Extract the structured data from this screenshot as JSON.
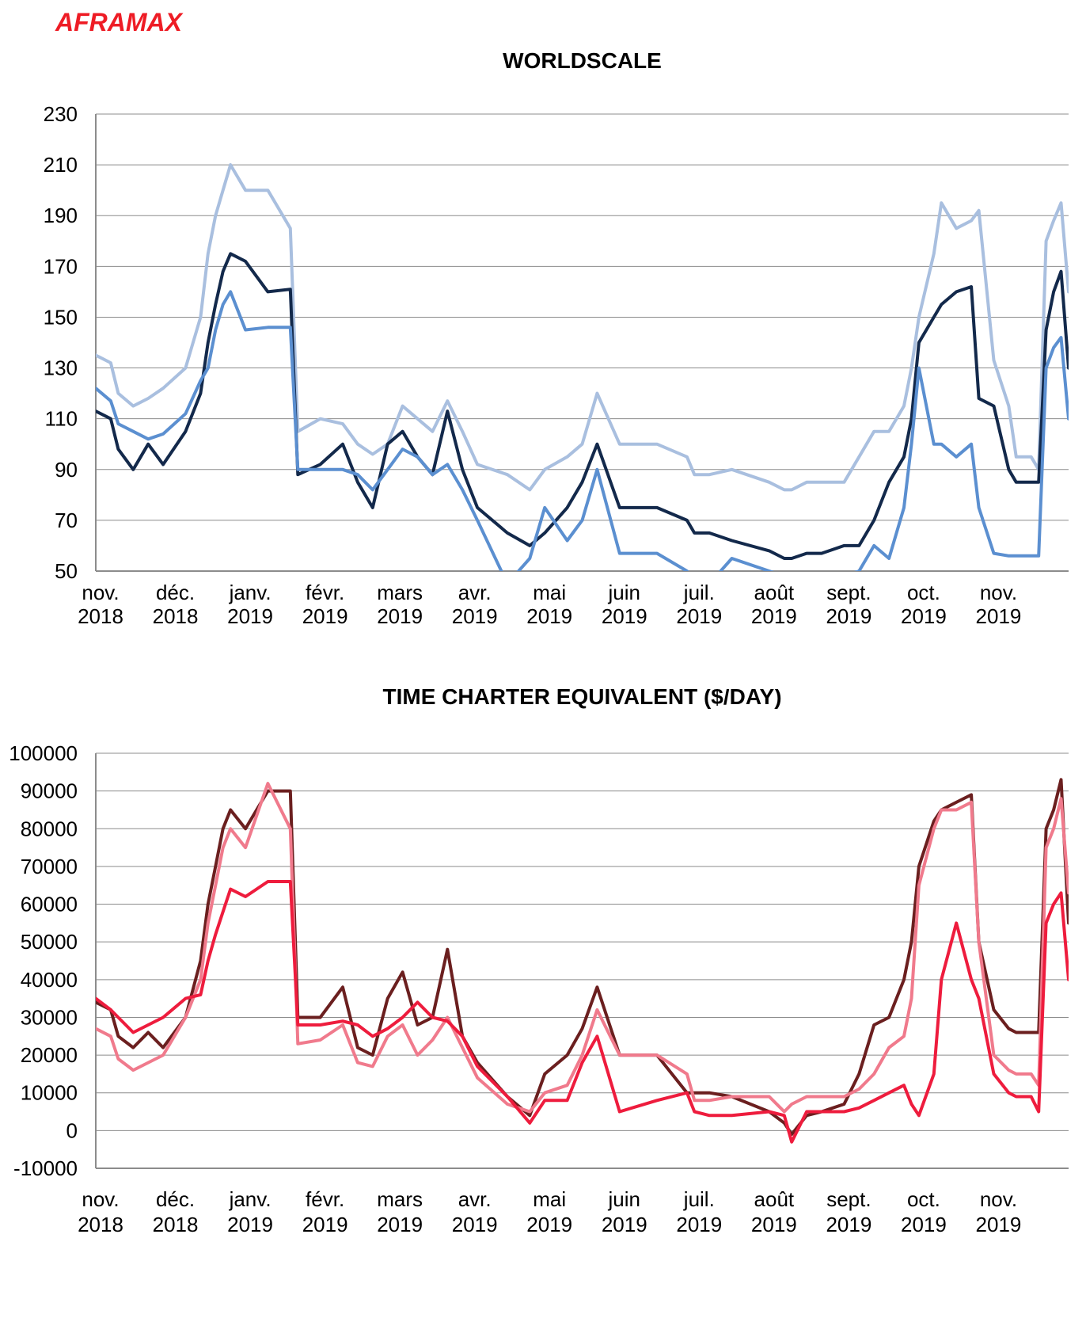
{
  "brand": "AFRAMAX",
  "chart_data": [
    {
      "type": "line",
      "title": "WORLDSCALE",
      "xlabel": "",
      "ylabel": "",
      "ylim": [
        50,
        230
      ],
      "yticks": [
        "230",
        "210",
        "190",
        "170",
        "150",
        "130",
        "110",
        "90",
        "70",
        "50"
      ],
      "xtick_labels": [
        [
          "nov.",
          "2018"
        ],
        [
          "déc.",
          "2018"
        ],
        [
          "janv.",
          "2019"
        ],
        [
          "févr.",
          "2019"
        ],
        [
          "mars",
          "2019"
        ],
        [
          "avr.",
          "2019"
        ],
        [
          "mai",
          "2019"
        ],
        [
          "juin",
          "2019"
        ],
        [
          "juil.",
          "2019"
        ],
        [
          "août",
          "2019"
        ],
        [
          "sept.",
          "2019"
        ],
        [
          "oct.",
          "2019"
        ],
        [
          "nov.",
          "2019"
        ]
      ],
      "x_range": [
        0,
        13
      ],
      "grid": true,
      "legend": "none",
      "series": [
        {
          "color": "#a9bfdf",
          "x": [
            0,
            0.2,
            0.3,
            0.5,
            0.7,
            0.9,
            1.2,
            1.4,
            1.5,
            1.6,
            1.7,
            1.8,
            2.0,
            2.3,
            2.6,
            2.7,
            3.0,
            3.3,
            3.5,
            3.7,
            3.9,
            4.1,
            4.3,
            4.5,
            4.7,
            4.9,
            5.1,
            5.5,
            5.8,
            6.0,
            6.3,
            6.5,
            6.7,
            7.0,
            7.5,
            7.9,
            8.0,
            8.2,
            8.5,
            9.0,
            9.2,
            9.3,
            9.5,
            9.7,
            10.0,
            10.2,
            10.4,
            10.6,
            10.8,
            10.9,
            11.0,
            11.2,
            11.3,
            11.5,
            11.7,
            11.8,
            12.0,
            12.2,
            12.3,
            12.5,
            12.6,
            12.7,
            12.8,
            12.9,
            13.0
          ],
          "values": [
            135,
            132,
            120,
            115,
            118,
            122,
            130,
            150,
            175,
            190,
            200,
            210,
            200,
            200,
            185,
            105,
            110,
            108,
            100,
            96,
            100,
            115,
            110,
            105,
            117,
            105,
            92,
            88,
            82,
            90,
            95,
            100,
            120,
            100,
            100,
            95,
            88,
            88,
            90,
            85,
            82,
            82,
            85,
            85,
            85,
            95,
            105,
            105,
            115,
            130,
            150,
            175,
            195,
            185,
            188,
            192,
            133,
            115,
            95,
            95,
            90,
            180,
            188,
            195,
            160
          ]
        },
        {
          "color": "#13294b",
          "x": [
            0,
            0.2,
            0.3,
            0.5,
            0.7,
            0.9,
            1.2,
            1.4,
            1.5,
            1.6,
            1.7,
            1.8,
            2.0,
            2.3,
            2.6,
            2.7,
            3.0,
            3.3,
            3.5,
            3.7,
            3.9,
            4.1,
            4.3,
            4.5,
            4.7,
            4.9,
            5.1,
            5.5,
            5.8,
            6.0,
            6.3,
            6.5,
            6.7,
            7.0,
            7.5,
            7.9,
            8.0,
            8.2,
            8.5,
            9.0,
            9.2,
            9.3,
            9.5,
            9.7,
            10.0,
            10.2,
            10.4,
            10.6,
            10.8,
            10.9,
            11.0,
            11.2,
            11.3,
            11.5,
            11.7,
            11.8,
            12.0,
            12.2,
            12.3,
            12.5,
            12.6,
            12.7,
            12.8,
            12.9,
            13.0
          ],
          "values": [
            113,
            110,
            98,
            90,
            100,
            92,
            105,
            120,
            140,
            155,
            168,
            175,
            172,
            160,
            161,
            88,
            92,
            100,
            85,
            75,
            100,
            105,
            95,
            88,
            113,
            90,
            75,
            65,
            60,
            65,
            75,
            85,
            100,
            75,
            75,
            70,
            65,
            65,
            62,
            58,
            55,
            55,
            57,
            57,
            60,
            60,
            70,
            85,
            95,
            110,
            140,
            150,
            155,
            160,
            162,
            118,
            115,
            90,
            85,
            85,
            85,
            145,
            160,
            168,
            130
          ]
        },
        {
          "color": "#5b8fd0",
          "x": [
            0,
            0.2,
            0.3,
            0.5,
            0.7,
            0.9,
            1.2,
            1.4,
            1.5,
            1.6,
            1.7,
            1.8,
            2.0,
            2.3,
            2.6,
            2.7,
            3.0,
            3.3,
            3.5,
            3.7,
            3.9,
            4.1,
            4.3,
            4.5,
            4.7,
            4.9,
            5.1,
            5.5,
            5.8,
            6.0,
            6.3,
            6.5,
            6.7,
            7.0,
            7.5,
            7.9,
            8.0,
            8.2,
            8.5,
            9.0,
            9.2,
            9.3,
            9.5,
            9.7,
            10.0,
            10.2,
            10.4,
            10.6,
            10.8,
            10.9,
            11.0,
            11.2,
            11.3,
            11.5,
            11.7,
            11.8,
            12.0,
            12.2,
            12.3,
            12.5,
            12.6,
            12.7,
            12.8,
            12.9,
            13.0
          ],
          "values": [
            122,
            117,
            108,
            105,
            102,
            104,
            112,
            125,
            130,
            145,
            155,
            160,
            145,
            146,
            146,
            90,
            90,
            90,
            88,
            82,
            90,
            98,
            95,
            88,
            92,
            82,
            70,
            45,
            55,
            75,
            62,
            70,
            90,
            57,
            57,
            50,
            45,
            45,
            55,
            50,
            48,
            48,
            48,
            48,
            48,
            50,
            60,
            55,
            75,
            100,
            130,
            100,
            100,
            95,
            100,
            75,
            57,
            56,
            56,
            56,
            56,
            130,
            138,
            142,
            110
          ]
        }
      ]
    },
    {
      "type": "line",
      "title": "TIME CHARTER EQUIVALENT ($/DAY)",
      "xlabel": "",
      "ylabel": "",
      "ylim": [
        -10000,
        100000
      ],
      "yticks": [
        "100000",
        "90000",
        "80000",
        "70000",
        "60000",
        "50000",
        "40000",
        "30000",
        "20000",
        "10000",
        "0",
        "-10000"
      ],
      "xtick_labels": [
        [
          "nov.",
          "2018"
        ],
        [
          "déc.",
          "2018"
        ],
        [
          "janv.",
          "2019"
        ],
        [
          "févr.",
          "2019"
        ],
        [
          "mars",
          "2019"
        ],
        [
          "avr.",
          "2019"
        ],
        [
          "mai",
          "2019"
        ],
        [
          "juin",
          "2019"
        ],
        [
          "juil.",
          "2019"
        ],
        [
          "août",
          "2019"
        ],
        [
          "sept.",
          "2019"
        ],
        [
          "oct.",
          "2019"
        ],
        [
          "nov.",
          "2019"
        ]
      ],
      "x_range": [
        0,
        13
      ],
      "grid": true,
      "legend": "none",
      "series": [
        {
          "color": "#6b1f1f",
          "x": [
            0,
            0.2,
            0.3,
            0.5,
            0.7,
            0.9,
            1.2,
            1.4,
            1.5,
            1.6,
            1.7,
            1.8,
            2.0,
            2.3,
            2.6,
            2.7,
            3.0,
            3.3,
            3.5,
            3.7,
            3.9,
            4.1,
            4.3,
            4.5,
            4.7,
            4.9,
            5.1,
            5.5,
            5.8,
            6.0,
            6.3,
            6.5,
            6.7,
            7.0,
            7.5,
            7.9,
            8.0,
            8.2,
            8.5,
            9.0,
            9.2,
            9.3,
            9.5,
            9.7,
            10.0,
            10.2,
            10.4,
            10.6,
            10.8,
            10.9,
            11.0,
            11.2,
            11.3,
            11.5,
            11.7,
            11.8,
            12.0,
            12.2,
            12.3,
            12.5,
            12.6,
            12.7,
            12.8,
            12.9,
            13.0
          ],
          "values": [
            34000,
            32000,
            25000,
            22000,
            26000,
            22000,
            30000,
            45000,
            60000,
            70000,
            80000,
            85000,
            80000,
            90000,
            90000,
            30000,
            30000,
            38000,
            22000,
            20000,
            35000,
            42000,
            28000,
            30000,
            48000,
            25000,
            18000,
            9000,
            4000,
            15000,
            20000,
            27000,
            38000,
            20000,
            20000,
            10000,
            10000,
            10000,
            9000,
            5000,
            2000,
            -1000,
            4000,
            5000,
            7000,
            15000,
            28000,
            30000,
            40000,
            50000,
            70000,
            82000,
            85000,
            87000,
            89000,
            50000,
            32000,
            27000,
            26000,
            26000,
            26000,
            80000,
            85000,
            93000,
            55000
          ]
        },
        {
          "color": "#f07a8c",
          "x": [
            0,
            0.2,
            0.3,
            0.5,
            0.7,
            0.9,
            1.2,
            1.4,
            1.5,
            1.6,
            1.7,
            1.8,
            2.0,
            2.3,
            2.6,
            2.7,
            3.0,
            3.3,
            3.5,
            3.7,
            3.9,
            4.1,
            4.3,
            4.5,
            4.7,
            4.9,
            5.1,
            5.5,
            5.8,
            6.0,
            6.3,
            6.5,
            6.7,
            7.0,
            7.5,
            7.9,
            8.0,
            8.2,
            8.5,
            9.0,
            9.2,
            9.3,
            9.5,
            9.7,
            10.0,
            10.2,
            10.4,
            10.6,
            10.8,
            10.9,
            11.0,
            11.2,
            11.3,
            11.5,
            11.7,
            11.8,
            12.0,
            12.2,
            12.3,
            12.5,
            12.6,
            12.7,
            12.8,
            12.9,
            13.0
          ],
          "values": [
            27000,
            25000,
            19000,
            16000,
            18000,
            20000,
            30000,
            40000,
            55000,
            65000,
            75000,
            80000,
            75000,
            92000,
            80000,
            23000,
            24000,
            28000,
            18000,
            17000,
            25000,
            28000,
            20000,
            24000,
            30000,
            22000,
            14000,
            7000,
            5000,
            10000,
            12000,
            20000,
            32000,
            20000,
            20000,
            15000,
            8000,
            8000,
            9000,
            9000,
            5000,
            7000,
            9000,
            9000,
            9000,
            11000,
            15000,
            22000,
            25000,
            35000,
            65000,
            80000,
            85000,
            85000,
            87000,
            50000,
            20000,
            16000,
            15000,
            15000,
            12000,
            75000,
            80000,
            88000,
            63000
          ]
        },
        {
          "color": "#ee1c3d",
          "x": [
            0,
            0.2,
            0.3,
            0.5,
            0.7,
            0.9,
            1.2,
            1.4,
            1.5,
            1.6,
            1.7,
            1.8,
            2.0,
            2.3,
            2.6,
            2.7,
            3.0,
            3.3,
            3.5,
            3.7,
            3.9,
            4.1,
            4.3,
            4.5,
            4.7,
            4.9,
            5.1,
            5.5,
            5.8,
            6.0,
            6.3,
            6.5,
            6.7,
            7.0,
            7.5,
            7.9,
            8.0,
            8.2,
            8.5,
            9.0,
            9.2,
            9.3,
            9.5,
            9.7,
            10.0,
            10.2,
            10.4,
            10.6,
            10.8,
            10.9,
            11.0,
            11.2,
            11.3,
            11.5,
            11.7,
            11.8,
            12.0,
            12.2,
            12.3,
            12.5,
            12.6,
            12.7,
            12.8,
            12.9,
            13.0
          ],
          "values": [
            35000,
            32000,
            30000,
            26000,
            28000,
            30000,
            35000,
            36000,
            45000,
            52000,
            58000,
            64000,
            62000,
            66000,
            66000,
            28000,
            28000,
            29000,
            28000,
            25000,
            27000,
            30000,
            34000,
            30000,
            29000,
            25000,
            17000,
            9000,
            2000,
            8000,
            8000,
            18000,
            25000,
            5000,
            8000,
            10000,
            5000,
            4000,
            4000,
            5000,
            4000,
            -3000,
            5000,
            5000,
            5000,
            6000,
            8000,
            10000,
            12000,
            7000,
            4000,
            15000,
            40000,
            55000,
            40000,
            35000,
            15000,
            10000,
            9000,
            9000,
            5000,
            55000,
            60000,
            63000,
            40000
          ]
        }
      ]
    }
  ]
}
